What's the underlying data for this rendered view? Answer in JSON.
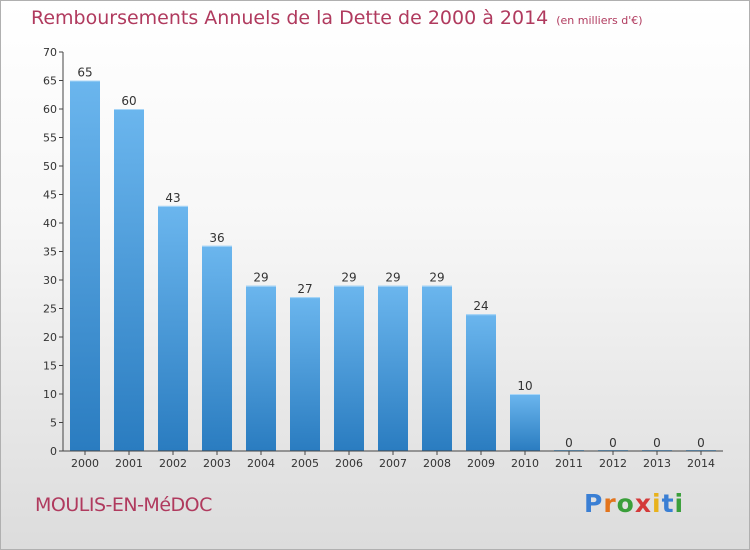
{
  "title": "Remboursements Annuels de la Dette de 2000 à 2014",
  "unit": "(en milliers d'€)",
  "commune": "MOULIS-EN-MéDOC",
  "logo": {
    "text": "Proxiti",
    "colors": [
      "#3a7fd4",
      "#e3741c",
      "#3a9f3a",
      "#d43a3a",
      "#e8b21c",
      "#3a7fd4",
      "#3a9f3a"
    ]
  },
  "colors": {
    "title": "#b03a5e",
    "bar_light": "#6bb6ee",
    "bar_dark": "#2a7cc0",
    "axis": "#444444"
  },
  "chart_data": {
    "type": "bar",
    "categories": [
      "2000",
      "2001",
      "2002",
      "2003",
      "2004",
      "2005",
      "2006",
      "2007",
      "2008",
      "2009",
      "2010",
      "2011",
      "2012",
      "2013",
      "2014"
    ],
    "values": [
      65,
      60,
      43,
      36,
      29,
      27,
      29,
      29,
      29,
      24,
      10,
      0,
      0,
      0,
      0
    ],
    "value_labels": [
      "65",
      "60",
      "43",
      "36",
      "29",
      "27",
      "29",
      "29",
      "29",
      "24",
      "10",
      "0",
      "0",
      "0",
      "0"
    ],
    "ylim": [
      0,
      70
    ],
    "yticks": [
      "0",
      "5",
      "10",
      "15",
      "20",
      "25",
      "30",
      "35",
      "40",
      "45",
      "50",
      "55",
      "60",
      "65",
      "70"
    ],
    "grid": false,
    "legend": "none"
  }
}
